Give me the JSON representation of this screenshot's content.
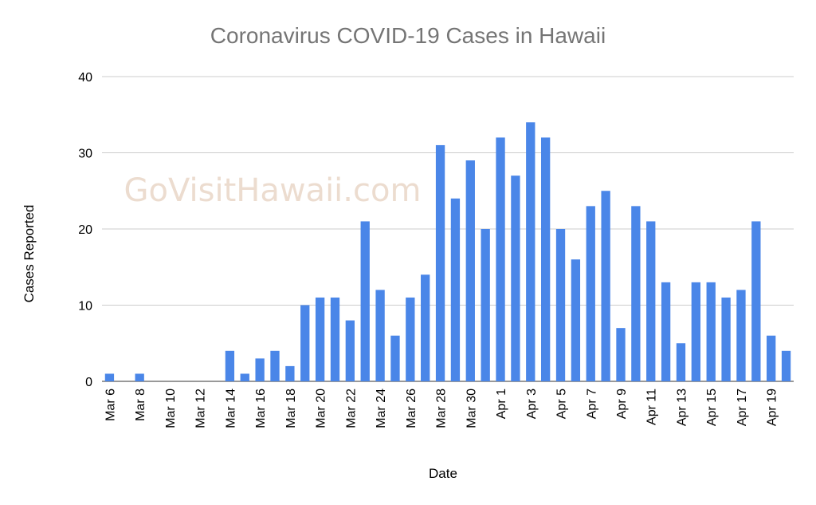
{
  "chart_data": {
    "type": "bar",
    "title": "Coronavirus COVID-19 Cases in Hawaii",
    "xlabel": "Date",
    "ylabel": "Cases Reported",
    "ylim": [
      0,
      40
    ],
    "yticks": [
      "0",
      "10",
      "20",
      "30",
      "40"
    ],
    "grid": true,
    "legend": "none",
    "bar_color": "#4a86e8",
    "watermark": "GoVisitHawaii.com",
    "categories": [
      "Mar 6",
      "Mar 7",
      "Mar 8",
      "Mar 9",
      "Mar 10",
      "Mar 11",
      "Mar 12",
      "Mar 13",
      "Mar 14",
      "Mar 15",
      "Mar 16",
      "Mar 17",
      "Mar 18",
      "Mar 19",
      "Mar 20",
      "Mar 21",
      "Mar 22",
      "Mar 23",
      "Mar 24",
      "Mar 25",
      "Mar 26",
      "Mar 27",
      "Mar 28",
      "Mar 29",
      "Mar 30",
      "Mar 31",
      "Apr 1",
      "Apr 2",
      "Apr 3",
      "Apr 4",
      "Apr 5",
      "Apr 6",
      "Apr 7",
      "Apr 8",
      "Apr 9",
      "Apr 10",
      "Apr 11",
      "Apr 12",
      "Apr 13",
      "Apr 14",
      "Apr 15",
      "Apr 16",
      "Apr 17",
      "Apr 18",
      "Apr 19",
      "Apr 20"
    ],
    "tick_labels_shown": [
      "Mar 6",
      "Mar 8",
      "Mar 10",
      "Mar 12",
      "Mar 14",
      "Mar 16",
      "Mar 18",
      "Mar 20",
      "Mar 22",
      "Mar 24",
      "Mar 26",
      "Mar 28",
      "Mar 30",
      "Apr 1",
      "Apr 3",
      "Apr 5",
      "Apr 7",
      "Apr 9",
      "Apr 11",
      "Apr 13",
      "Apr 15",
      "Apr 17",
      "Apr 19"
    ],
    "values": [
      1,
      0,
      1,
      0,
      0,
      0,
      0,
      0,
      4,
      1,
      3,
      4,
      2,
      10,
      11,
      11,
      8,
      21,
      12,
      6,
      11,
      14,
      31,
      24,
      29,
      20,
      32,
      27,
      34,
      32,
      20,
      16,
      23,
      25,
      7,
      23,
      21,
      13,
      5,
      13,
      13,
      11,
      12,
      21,
      6,
      4
    ]
  }
}
